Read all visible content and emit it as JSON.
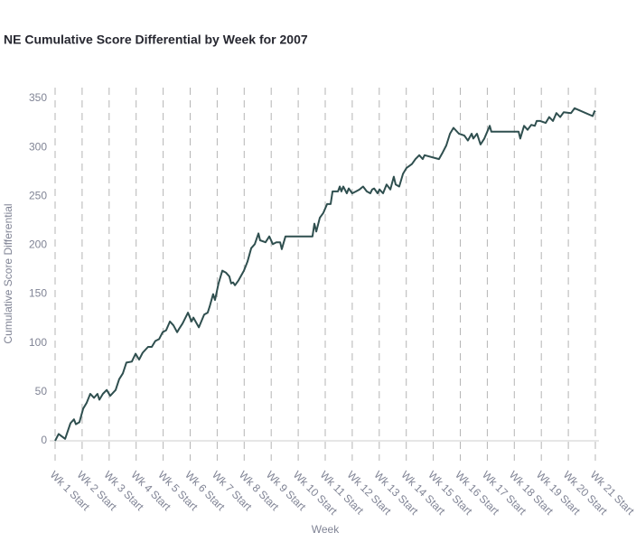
{
  "chart_data": {
    "type": "line",
    "title": "NE Cumulative Score Differential by Week for 2007",
    "x_label": "Week",
    "y_label": "Cumulative Score Differential",
    "xlim": [
      1,
      21
    ],
    "ylim": [
      0,
      350
    ],
    "xticks": [
      {
        "value": 1,
        "label": "Wk 1 Start"
      },
      {
        "value": 2,
        "label": "Wk 2 Start"
      },
      {
        "value": 3,
        "label": "Wk 3 Start"
      },
      {
        "value": 4,
        "label": "Wk 4 Start"
      },
      {
        "value": 5,
        "label": "Wk 5 Start"
      },
      {
        "value": 6,
        "label": "Wk 6 Start"
      },
      {
        "value": 7,
        "label": "Wk 7 Start"
      },
      {
        "value": 8,
        "label": "Wk 8 Start"
      },
      {
        "value": 9,
        "label": "Wk 9 Start"
      },
      {
        "value": 10,
        "label": "Wk 10 Start"
      },
      {
        "value": 11,
        "label": "Wk 11 Start"
      },
      {
        "value": 12,
        "label": "Wk 12 Start"
      },
      {
        "value": 13,
        "label": "Wk 13 Start"
      },
      {
        "value": 14,
        "label": "Wk 14 Start"
      },
      {
        "value": 15,
        "label": "Wk 15 Start"
      },
      {
        "value": 16,
        "label": "Wk 16 Start"
      },
      {
        "value": 17,
        "label": "Wk 17 Start"
      },
      {
        "value": 18,
        "label": "Wk 18 Start"
      },
      {
        "value": 19,
        "label": "Wk 19 Start"
      },
      {
        "value": 20,
        "label": "Wk 20 Start"
      },
      {
        "value": 21,
        "label": "Wk 21 Start"
      }
    ],
    "yticks": [
      0,
      50,
      100,
      150,
      200,
      250,
      300,
      350
    ],
    "xgrid": true,
    "color": "#2f4f4f",
    "x": [
      1.0,
      1.13,
      1.37,
      1.57,
      1.7,
      1.77,
      1.9,
      2.04,
      2.17,
      2.3,
      2.44,
      2.57,
      2.64,
      2.77,
      2.91,
      3.04,
      3.24,
      3.37,
      3.51,
      3.64,
      3.84,
      3.98,
      4.11,
      4.24,
      4.44,
      4.58,
      4.71,
      4.85,
      4.98,
      5.11,
      5.25,
      5.38,
      5.52,
      5.58,
      5.72,
      5.92,
      6.05,
      6.12,
      6.32,
      6.52,
      6.65,
      6.72,
      6.85,
      6.92,
      7.05,
      7.19,
      7.32,
      7.45,
      7.52,
      7.59,
      7.66,
      7.79,
      7.99,
      8.12,
      8.26,
      8.39,
      8.53,
      8.59,
      8.79,
      8.93,
      9.06,
      9.19,
      9.33,
      9.39,
      9.53,
      10.33,
      10.53,
      10.6,
      10.67,
      10.8,
      10.93,
      11.07,
      11.2,
      11.27,
      11.47,
      11.54,
      11.6,
      11.67,
      11.8,
      11.87,
      12.0,
      12.14,
      12.27,
      12.4,
      12.54,
      12.67,
      12.74,
      12.81,
      12.94,
      13.01,
      13.14,
      13.27,
      13.41,
      13.54,
      13.61,
      13.74,
      13.88,
      14.01,
      14.21,
      14.34,
      14.48,
      14.61,
      14.68,
      15.21,
      15.35,
      15.48,
      15.62,
      15.75,
      15.95,
      16.15,
      16.28,
      16.42,
      16.48,
      16.62,
      16.75,
      16.89,
      17.09,
      17.15,
      18.16,
      18.22,
      18.36,
      18.49,
      18.63,
      18.76,
      18.83,
      18.96,
      19.16,
      19.29,
      19.43,
      19.56,
      19.7,
      19.83,
      20.1,
      20.23,
      20.9,
      20.97,
      21.0
    ],
    "values": [
      0,
      7,
      2,
      18,
      22,
      17,
      19,
      33,
      39,
      48,
      44,
      48,
      42,
      48,
      52,
      46,
      52,
      63,
      69,
      80,
      81,
      89,
      83,
      90,
      96,
      96,
      102,
      104,
      111,
      113,
      122,
      118,
      111,
      114,
      120,
      131,
      122,
      126,
      116,
      129,
      131,
      137,
      150,
      144,
      161,
      174,
      172,
      168,
      161,
      162,
      159,
      164,
      174,
      183,
      197,
      201,
      212,
      205,
      203,
      209,
      201,
      203,
      203,
      196,
      209,
      209,
      209,
      222,
      214,
      228,
      233,
      242,
      242,
      255,
      255,
      260,
      255,
      260,
      253,
      258,
      253,
      255,
      257,
      260,
      255,
      253,
      257,
      258,
      253,
      257,
      253,
      262,
      257,
      270,
      262,
      260,
      273,
      279,
      283,
      288,
      292,
      288,
      292,
      288,
      295,
      302,
      314,
      320,
      314,
      312,
      307,
      314,
      309,
      314,
      303,
      309,
      322,
      316,
      316,
      309,
      322,
      318,
      323,
      322,
      327,
      327,
      325,
      331,
      327,
      335,
      331,
      336,
      335,
      340,
      332,
      337,
      336
    ]
  }
}
